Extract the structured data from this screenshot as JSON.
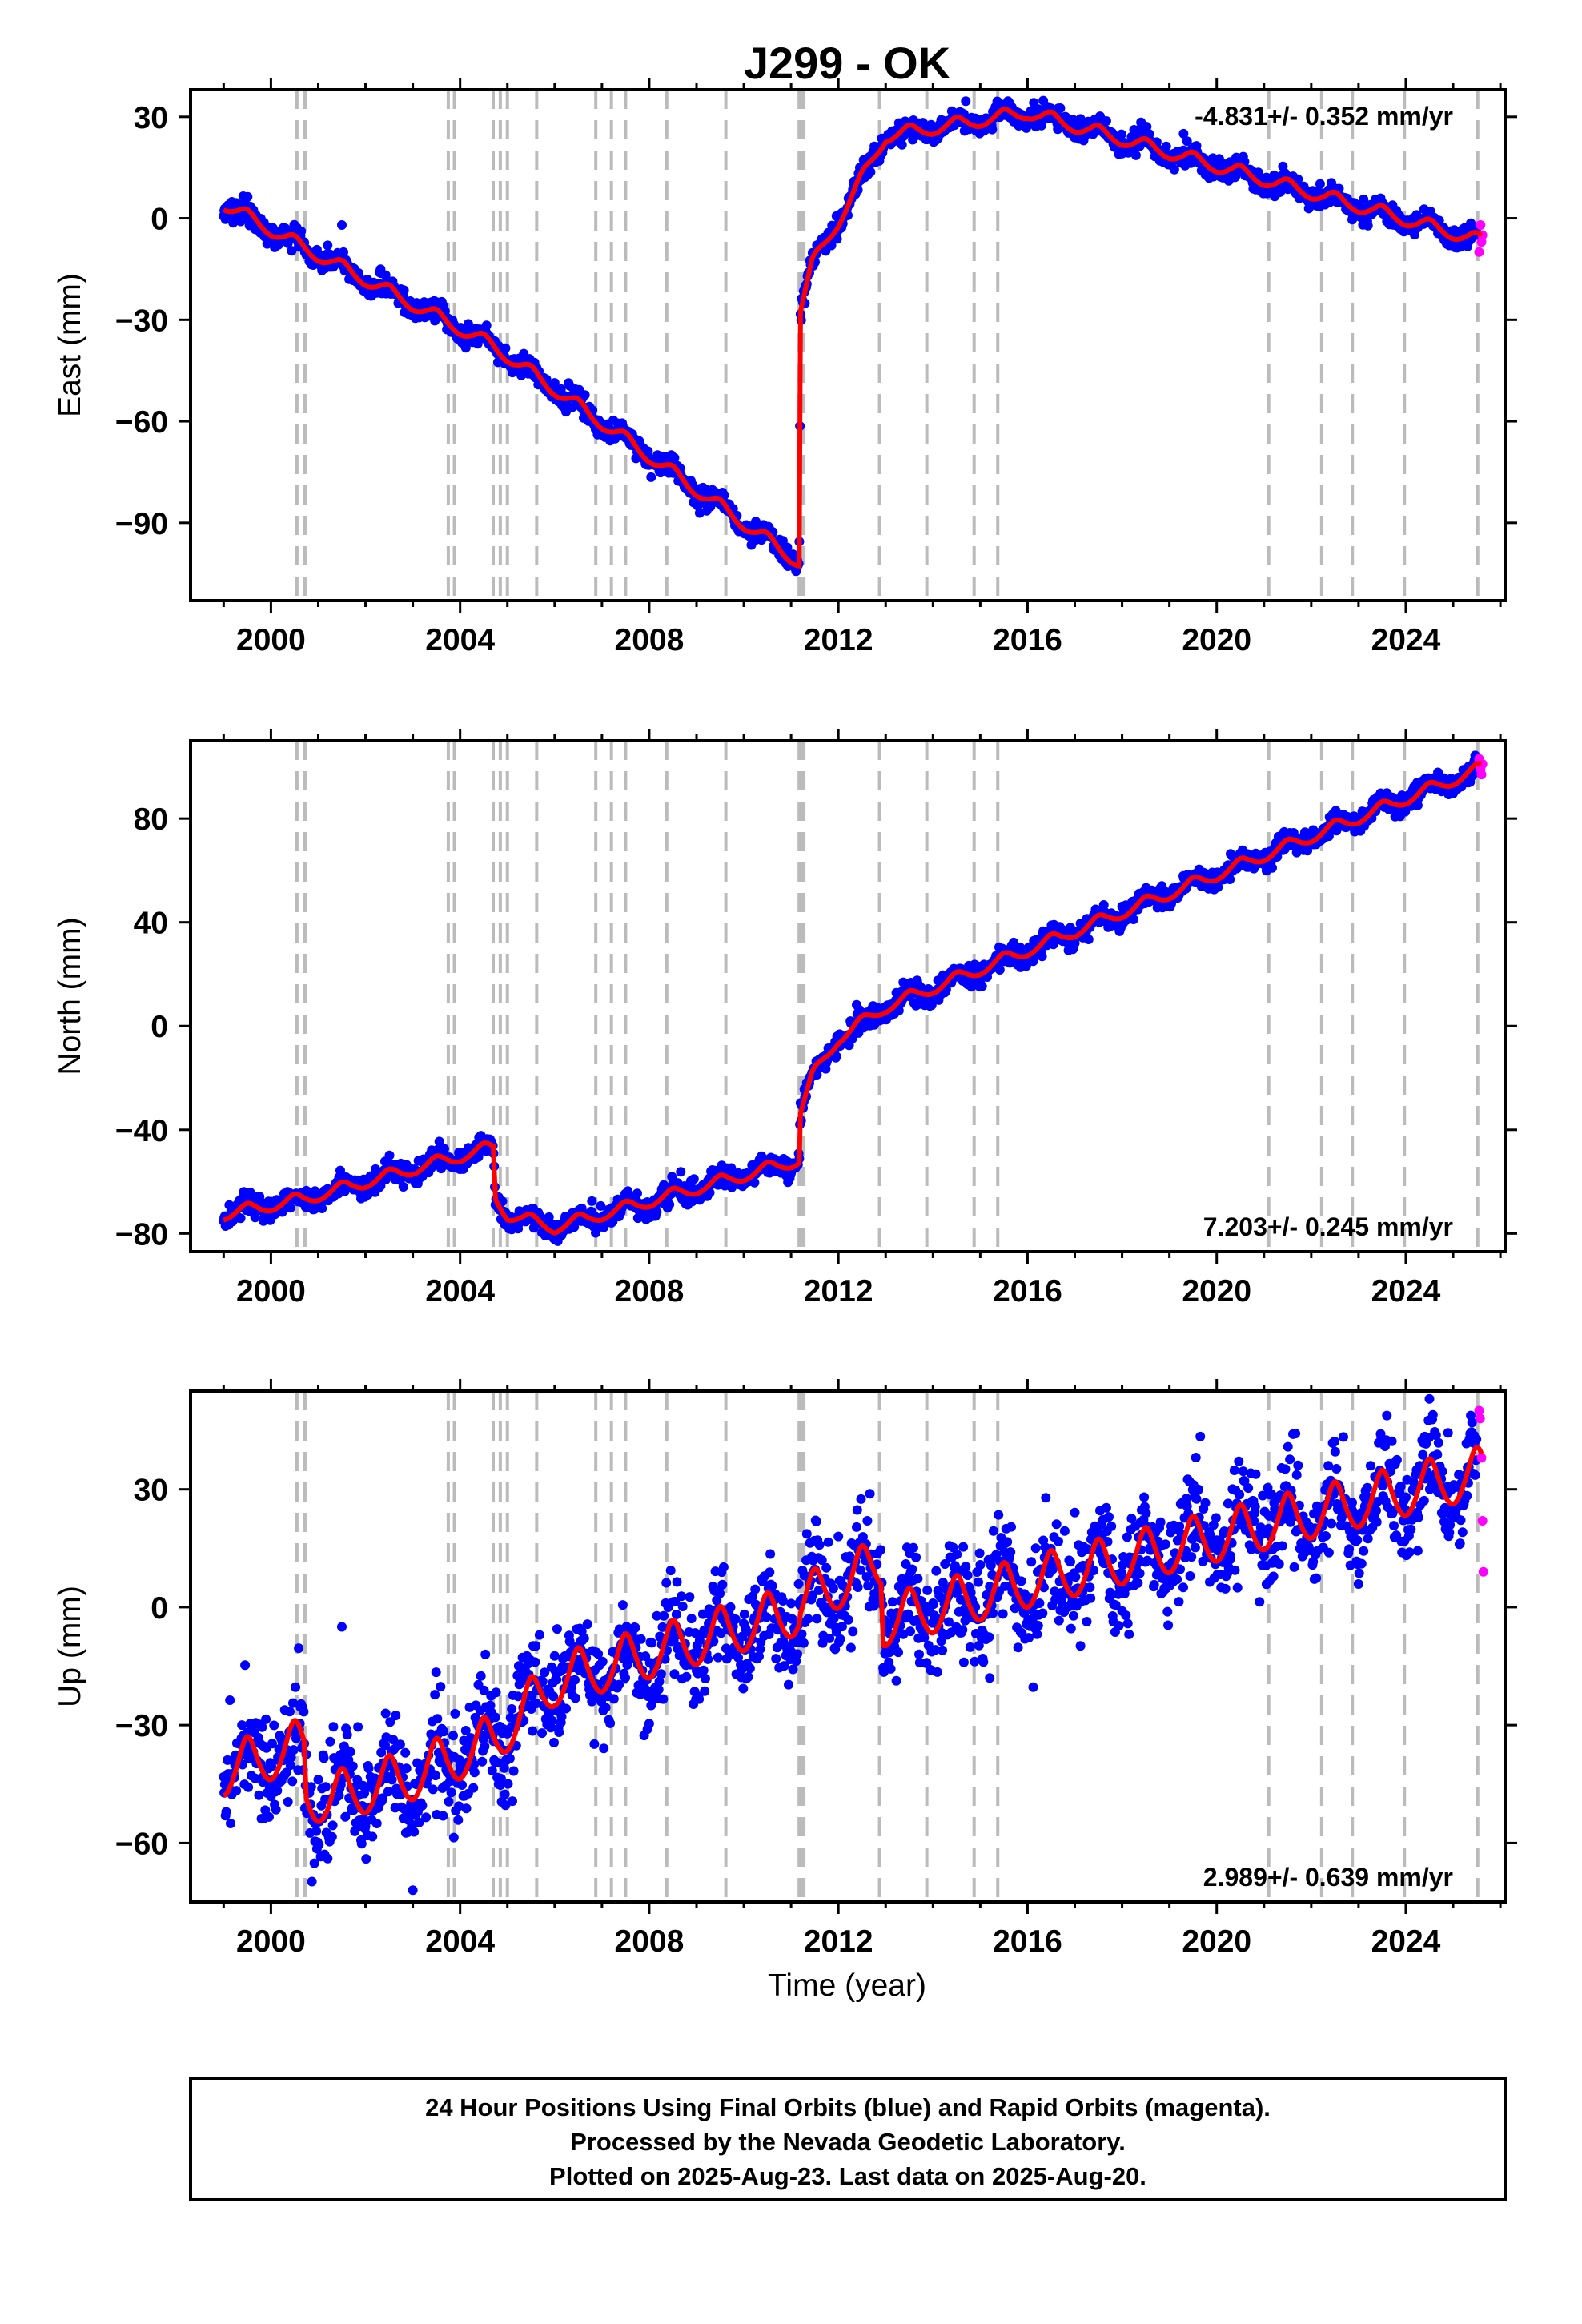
{
  "title": "J299 - OK",
  "x_axis_label": "Time (year)",
  "footer": {
    "line1": "24 Hour Positions Using Final Orbits (blue) and Rapid Orbits (magenta).",
    "line2": "Processed by the Nevada Geodetic Laboratory.",
    "line3": "Plotted on 2025-Aug-23. Last data on 2025-Aug-20."
  },
  "colors": {
    "final_orbits": "#0000ff",
    "rapid_orbits": "#ff00ff",
    "model_fit": "#ff0000",
    "equipment_change_lines": "#bbbbbb"
  },
  "chart_data": [
    {
      "type": "scatter",
      "name": "east",
      "ylabel": "East (mm)",
      "rate_text": "-4.831+/- 0.352 mm/yr",
      "rate_position": "top-right",
      "xlim": [
        1998.3,
        2026.1
      ],
      "ylim": [
        -113,
        38
      ],
      "xticks": [
        2000,
        2004,
        2008,
        2012,
        2016,
        2020,
        2024
      ],
      "yticks": [
        30,
        0,
        -30,
        -60,
        -90
      ],
      "ytick_labels": [
        "30",
        "0",
        "−30",
        "−60",
        "−90"
      ],
      "model_fit": {
        "knots_x": [
          1999.0,
          2000.7,
          2004.7,
          2011.17,
          2011.2,
          2011.45,
          2012.0,
          2013.0,
          2016.0,
          2025.6
        ],
        "knots_y": [
          4,
          -9,
          -38,
          -102,
          -27,
          -14,
          -1,
          24,
          31,
          -7
        ],
        "seasonal_amplitude": 1.5
      },
      "final_orbits": {
        "x_range": [
          1999.0,
          2025.5
        ],
        "scatter_mm": 1.6,
        "outliers": [
          [
            2001.2,
            -8
          ],
          [
            2001.5,
            -2
          ],
          [
            2002.6,
            -20
          ],
          [
            2019.3,
            25
          ]
        ]
      },
      "rapid_orbits": {
        "x": [
          2025.55,
          2025.58,
          2025.6,
          2025.62
        ],
        "y": [
          -10,
          -2,
          -7,
          -5
        ]
      }
    },
    {
      "type": "scatter",
      "name": "north",
      "ylabel": "North (mm)",
      "rate_text": "7.203+/- 0.245 mm/yr",
      "rate_position": "bottom-right",
      "xlim": [
        1998.3,
        2026.1
      ],
      "ylim": [
        -87,
        110
      ],
      "xticks": [
        2000,
        2004,
        2008,
        2012,
        2016,
        2020,
        2024
      ],
      "yticks": [
        80,
        40,
        0,
        -40,
        -80
      ],
      "ytick_labels": [
        "80",
        "40",
        "0",
        "−40",
        "−80"
      ],
      "model_fit": {
        "knots_x": [
          1999.0,
          2000.7,
          2004.7,
          2004.75,
          2005.0,
          2006.0,
          2011.17,
          2011.2,
          2011.45,
          2012.0,
          2013.0,
          2025.6
        ],
        "knots_y": [
          -73,
          -67,
          -47,
          -67,
          -73,
          -78,
          -52,
          -33,
          -20,
          -5,
          7,
          99
        ],
        "seasonal_amplitude": 1.8
      },
      "final_orbits": {
        "x_range": [
          1999.0,
          2025.5
        ],
        "scatter_mm": 2.0,
        "outliers": []
      },
      "rapid_orbits": {
        "x": [
          2025.55,
          2025.58,
          2025.6,
          2025.62
        ],
        "y": [
          103,
          99,
          97,
          101
        ]
      }
    },
    {
      "type": "scatter",
      "name": "up",
      "ylabel": "Up (mm)",
      "rate_text": "2.989+/- 0.639 mm/yr",
      "rate_position": "bottom-right",
      "xlim": [
        1998.3,
        2026.1
      ],
      "ylim": [
        -75,
        55
      ],
      "xticks": [
        2000,
        2004,
        2008,
        2012,
        2016,
        2020,
        2024
      ],
      "yticks": [
        30,
        0,
        -30,
        -60
      ],
      "ytick_labels": [
        "30",
        "0",
        "−30",
        "−60"
      ],
      "model_fit": {
        "knots_x": [
          1999.0,
          2000.7,
          2000.75,
          2001.2,
          2003.0,
          2004.7,
          2006.0,
          2011.17,
          2011.2,
          2012.9,
          2012.95,
          2016.0,
          2025.6
        ],
        "knots_y": [
          -43,
          -36,
          -49,
          -50,
          -44,
          -35,
          -20,
          -2,
          0,
          10,
          -5,
          5,
          33
        ],
        "seasonal_amplitude": 5
      },
      "final_orbits": {
        "x_range": [
          1999.0,
          2025.5
        ],
        "scatter_mm": 6.5,
        "outliers": [
          [
            2001.5,
            -5
          ],
          [
            2003.0,
            -72
          ],
          [
            2012.0,
            18
          ],
          [
            2015.2,
            -18
          ],
          [
            2024.5,
            53
          ]
        ]
      },
      "rapid_orbits": {
        "x": [
          2025.55,
          2025.57,
          2025.6,
          2025.62,
          2025.64
        ],
        "y": [
          50,
          48,
          38,
          22,
          9
        ]
      }
    }
  ],
  "event_lines_years": [
    2000.55,
    2000.72,
    2003.75,
    2003.88,
    2004.7,
    2004.85,
    2005.0,
    2005.62,
    2006.87,
    2007.2,
    2007.5,
    2008.37,
    2009.62,
    2011.17,
    2011.22,
    2011.27,
    2012.87,
    2013.87,
    2014.87,
    2015.37,
    2021.1,
    2022.22,
    2022.87,
    2023.97,
    2025.52
  ]
}
